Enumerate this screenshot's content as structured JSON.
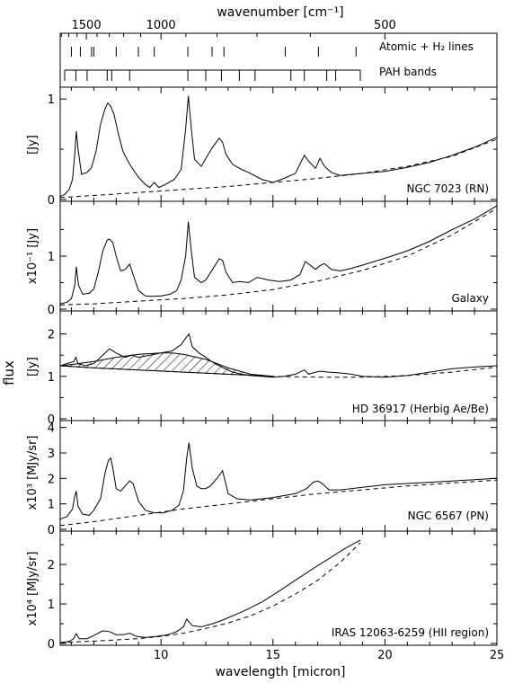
{
  "chart_data": {
    "type": "line",
    "top_axis": {
      "label": "wavenumber [cm⁻¹]",
      "ticks": [
        "1500",
        "1000",
        "500"
      ],
      "tick_values": [
        1500,
        1000,
        500
      ]
    },
    "xlabel": "wavelength [micron]",
    "xlim": [
      5.5,
      25
    ],
    "x_ticks": [
      10,
      15,
      20,
      25
    ],
    "shared_ylabel": "flux",
    "grid": false,
    "lines_panel": {
      "atomic_label": "Atomic + H₂ lines",
      "pah_label": "PAH bands",
      "atomic_lines_um": [
        6.0,
        6.4,
        6.9,
        7.0,
        8.0,
        8.99,
        9.7,
        11.2,
        12.28,
        12.81,
        15.55,
        17.03,
        18.71
      ],
      "pah_bands_um": [
        5.7,
        6.2,
        6.7,
        7.6,
        7.8,
        8.6,
        11.2,
        12.0,
        12.7,
        13.5,
        14.2,
        15.8,
        16.4,
        17.4,
        17.8,
        18.9
      ]
    },
    "panels": [
      {
        "id": "ngc7023",
        "ylabel": "[Jy]",
        "object_label": "NGC 7023 (RN)",
        "ylim": [
          0,
          1.1
        ],
        "yticks": [
          0,
          0.5,
          1
        ],
        "ytick_labels": [
          "0",
          "",
          "1"
        ],
        "series": [
          {
            "style": "solid",
            "x": [
              5.5,
              5.7,
              5.9,
              6.05,
              6.15,
              6.22,
              6.3,
              6.45,
              6.7,
              6.9,
              7.1,
              7.3,
              7.5,
              7.62,
              7.75,
              7.9,
              8.1,
              8.3,
              8.6,
              9.0,
              9.3,
              9.5,
              9.7,
              9.9,
              10.2,
              10.6,
              10.9,
              11.1,
              11.22,
              11.35,
              11.5,
              11.8,
              12.0,
              12.3,
              12.6,
              12.75,
              12.9,
              13.2,
              13.6,
              14.0,
              14.5,
              15.0,
              15.5,
              16.0,
              16.4,
              16.6,
              16.9,
              17.1,
              17.3,
              17.6,
              18.0,
              18.5,
              19,
              20,
              21,
              22,
              23,
              24,
              25
            ],
            "y": [
              0.03,
              0.05,
              0.1,
              0.2,
              0.45,
              0.68,
              0.5,
              0.25,
              0.27,
              0.32,
              0.48,
              0.75,
              0.9,
              0.96,
              0.93,
              0.85,
              0.65,
              0.48,
              0.35,
              0.22,
              0.15,
              0.12,
              0.17,
              0.12,
              0.15,
              0.2,
              0.3,
              0.7,
              1.03,
              0.72,
              0.4,
              0.33,
              0.41,
              0.52,
              0.61,
              0.57,
              0.45,
              0.35,
              0.3,
              0.26,
              0.2,
              0.17,
              0.21,
              0.26,
              0.44,
              0.38,
              0.31,
              0.41,
              0.33,
              0.27,
              0.24,
              0.25,
              0.26,
              0.28,
              0.32,
              0.37,
              0.44,
              0.52,
              0.62
            ]
          },
          {
            "style": "dashed",
            "x": [
              5.5,
              7,
              9,
              11,
              13,
              15,
              17,
              19,
              21,
              23,
              25
            ],
            "y": [
              0.02,
              0.04,
              0.07,
              0.1,
              0.13,
              0.17,
              0.21,
              0.26,
              0.33,
              0.43,
              0.6
            ]
          }
        ]
      },
      {
        "id": "galaxy",
        "ylabel": "x10⁻¹ [Jy]",
        "object_label": "Galaxy",
        "ylim": [
          0,
          2.0
        ],
        "yticks": [
          0,
          0.5,
          1,
          1.5
        ],
        "ytick_labels": [
          "0",
          "",
          "1",
          ""
        ],
        "series": [
          {
            "style": "solid",
            "x": [
              5.5,
              5.8,
              6.0,
              6.15,
              6.22,
              6.32,
              6.5,
              6.8,
              7.0,
              7.2,
              7.4,
              7.6,
              7.7,
              7.85,
              8.0,
              8.2,
              8.4,
              8.6,
              8.8,
              9.0,
              9.3,
              9.6,
              10.0,
              10.4,
              10.7,
              10.9,
              11.1,
              11.22,
              11.35,
              11.5,
              11.8,
              12.0,
              12.3,
              12.6,
              12.75,
              12.9,
              13.2,
              13.5,
              13.9,
              14.3,
              14.8,
              15.3,
              15.8,
              16.2,
              16.45,
              16.6,
              16.9,
              17.1,
              17.3,
              17.6,
              18.0,
              18.5,
              19,
              20,
              21,
              22,
              23,
              24,
              25
            ],
            "y": [
              0.1,
              0.13,
              0.2,
              0.45,
              0.8,
              0.45,
              0.28,
              0.3,
              0.38,
              0.7,
              1.1,
              1.3,
              1.32,
              1.25,
              1.0,
              0.72,
              0.75,
              0.85,
              0.6,
              0.35,
              0.25,
              0.24,
              0.25,
              0.28,
              0.35,
              0.55,
              1.0,
              1.65,
              1.1,
              0.6,
              0.5,
              0.55,
              0.75,
              0.95,
              0.92,
              0.7,
              0.5,
              0.52,
              0.5,
              0.6,
              0.55,
              0.52,
              0.55,
              0.65,
              0.9,
              0.85,
              0.75,
              0.82,
              0.86,
              0.75,
              0.72,
              0.77,
              0.83,
              0.96,
              1.1,
              1.28,
              1.5,
              1.7,
              1.95
            ]
          },
          {
            "style": "dashed",
            "x": [
              5.5,
              7,
              9,
              11,
              13,
              15,
              17,
              19,
              21,
              23,
              25
            ],
            "y": [
              0.08,
              0.1,
              0.15,
              0.2,
              0.27,
              0.37,
              0.53,
              0.73,
              1.0,
              1.4,
              1.9
            ]
          }
        ]
      },
      {
        "id": "hd36917",
        "ylabel": "[Jy]",
        "object_label": "HD 36917 (Herbig Ae/Be)",
        "ylim": [
          0,
          2.5
        ],
        "yticks": [
          0,
          0.5,
          1,
          1.5,
          2
        ],
        "ytick_labels": [
          "0",
          "",
          "1",
          "",
          "2"
        ],
        "series": [
          {
            "style": "solid",
            "x": [
              5.5,
              5.8,
              6.1,
              6.2,
              6.3,
              6.6,
              7.0,
              7.4,
              7.7,
              8.0,
              8.4,
              8.7,
              9.0,
              9.5,
              10.0,
              10.5,
              10.9,
              11.1,
              11.25,
              11.4,
              11.7,
              12.0,
              12.4,
              12.8,
              13.2,
              13.6,
              14.0,
              14.5,
              15.0,
              15.5,
              16.0,
              16.4,
              16.6,
              16.9,
              17.1,
              17.5,
              18.0,
              18.5,
              19,
              20,
              21,
              22,
              23,
              24,
              25
            ],
            "y": [
              1.25,
              1.3,
              1.35,
              1.45,
              1.3,
              1.25,
              1.3,
              1.5,
              1.65,
              1.55,
              1.45,
              1.5,
              1.45,
              1.5,
              1.55,
              1.6,
              1.75,
              1.9,
              2.0,
              1.7,
              1.55,
              1.45,
              1.3,
              1.2,
              1.1,
              1.05,
              1.02,
              1.0,
              0.98,
              1.0,
              1.05,
              1.15,
              1.05,
              1.1,
              1.12,
              1.1,
              1.08,
              1.05,
              1.0,
              0.98,
              1.02,
              1.1,
              1.18,
              1.22,
              1.25
            ]
          },
          {
            "style": "dashed",
            "x": [
              5.5,
              7,
              9,
              11,
              13,
              15,
              17,
              19,
              21,
              23,
              25
            ],
            "y": [
              1.25,
              1.2,
              1.15,
              1.1,
              1.05,
              1.0,
              0.98,
              0.98,
              1.02,
              1.1,
              1.22
            ]
          },
          {
            "style": "hatched_region",
            "x": [
              5.5,
              6,
              7,
              8,
              9,
              10,
              10.5,
              11,
              12,
              13,
              14,
              15
            ],
            "y": [
              1.25,
              1.28,
              1.35,
              1.45,
              1.52,
              1.55,
              1.55,
              1.52,
              1.4,
              1.2,
              1.05,
              1.0
            ]
          }
        ]
      },
      {
        "id": "ngc6567",
        "ylabel": "x10³ [MJy/sr]",
        "object_label": "NGC 6567 (PN)",
        "ylim": [
          0,
          4.2
        ],
        "yticks": [
          0,
          1,
          2,
          3,
          4
        ],
        "ytick_labels": [
          "0",
          "1",
          "2",
          "3",
          "4"
        ],
        "series": [
          {
            "style": "solid",
            "x": [
              5.5,
              5.8,
              6.05,
              6.15,
              6.22,
              6.3,
              6.5,
              6.8,
              7.0,
              7.3,
              7.5,
              7.65,
              7.75,
              7.85,
              8.0,
              8.2,
              8.4,
              8.6,
              8.75,
              9.0,
              9.3,
              9.7,
              10.1,
              10.5,
              10.8,
              11.0,
              11.15,
              11.25,
              11.4,
              11.6,
              11.8,
              12.0,
              12.2,
              12.5,
              12.75,
              13.0,
              13.4,
              14,
              15,
              16,
              16.5,
              16.8,
              17.0,
              17.2,
              17.5,
              18,
              19,
              20,
              21,
              22,
              23,
              24,
              25
            ],
            "y": [
              0.4,
              0.5,
              0.8,
              1.3,
              1.5,
              0.9,
              0.6,
              0.55,
              0.75,
              1.2,
              2.2,
              2.7,
              2.8,
              2.4,
              1.6,
              1.5,
              1.7,
              1.9,
              1.8,
              1.1,
              0.75,
              0.65,
              0.65,
              0.75,
              0.95,
              1.5,
              2.8,
              3.4,
              2.4,
              1.7,
              1.6,
              1.6,
              1.7,
              2.0,
              2.3,
              1.4,
              1.2,
              1.15,
              1.25,
              1.4,
              1.6,
              1.85,
              1.9,
              1.8,
              1.55,
              1.55,
              1.65,
              1.75,
              1.8,
              1.85,
              1.9,
              1.95,
              2.0
            ]
          },
          {
            "style": "dashed",
            "x": [
              5.5,
              7,
              9,
              11,
              13,
              15,
              17,
              19,
              21,
              23,
              25
            ],
            "y": [
              0.15,
              0.3,
              0.55,
              0.8,
              1.0,
              1.2,
              1.4,
              1.55,
              1.7,
              1.82,
              1.93
            ]
          }
        ]
      },
      {
        "id": "iras12063",
        "ylabel": "x10⁴ [MJy/sr]",
        "object_label": "IRAS 12063-6259 (HII region)",
        "ylim": [
          0,
          2.8
        ],
        "yticks": [
          0,
          0.5,
          1,
          1.5,
          2,
          2.5
        ],
        "ytick_labels": [
          "0",
          "",
          "1",
          "",
          "2",
          ""
        ],
        "series": [
          {
            "style": "solid",
            "x": [
              5.5,
              5.9,
              6.1,
              6.22,
              6.35,
              6.7,
              7.0,
              7.4,
              7.7,
              8.0,
              8.3,
              8.6,
              8.9,
              9.3,
              9.8,
              10.3,
              10.7,
              11.0,
              11.15,
              11.25,
              11.4,
              11.8,
              12.3,
              12.7,
              13.2,
              13.8,
              14.5,
              15.2,
              16.0,
              16.8,
              17.5,
              18.2,
              18.9
            ],
            "y": [
              0.02,
              0.05,
              0.12,
              0.25,
              0.12,
              0.12,
              0.2,
              0.32,
              0.3,
              0.22,
              0.22,
              0.26,
              0.18,
              0.15,
              0.18,
              0.22,
              0.3,
              0.42,
              0.62,
              0.55,
              0.45,
              0.42,
              0.5,
              0.58,
              0.7,
              0.85,
              1.05,
              1.3,
              1.6,
              1.9,
              2.15,
              2.4,
              2.62
            ]
          },
          {
            "style": "dashed",
            "x": [
              5.5,
              7,
              9,
              10,
              11,
              12,
              13,
              14,
              15,
              16,
              17,
              18,
              18.9
            ],
            "y": [
              0.02,
              0.06,
              0.12,
              0.18,
              0.26,
              0.38,
              0.52,
              0.7,
              0.95,
              1.25,
              1.6,
              2.05,
              2.55
            ]
          }
        ]
      }
    ]
  }
}
